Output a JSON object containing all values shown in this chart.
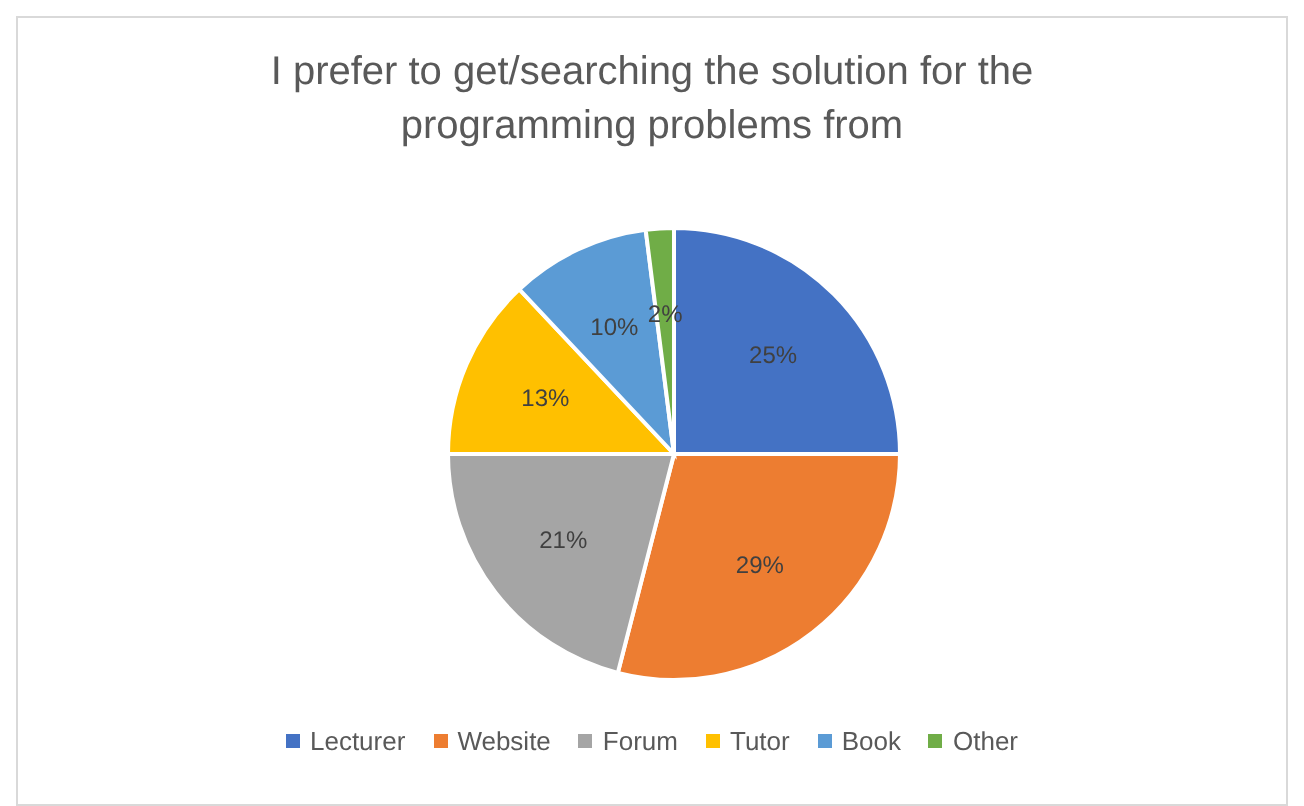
{
  "chart_data": {
    "type": "pie",
    "title": "I prefer to get/searching the solution for the programming problems from",
    "categories": [
      "Lecturer",
      "Website",
      "Forum",
      "Tutor",
      "Book",
      "Other"
    ],
    "values": [
      25,
      29,
      21,
      13,
      10,
      2
    ],
    "colors": [
      "#4472c4",
      "#ed7d31",
      "#a5a5a5",
      "#ffc000",
      "#5b9bd5",
      "#70ad47"
    ],
    "value_labels": [
      "25%",
      "29%",
      "21%",
      "13%",
      "10%",
      "2%"
    ],
    "legend": "bottom"
  }
}
